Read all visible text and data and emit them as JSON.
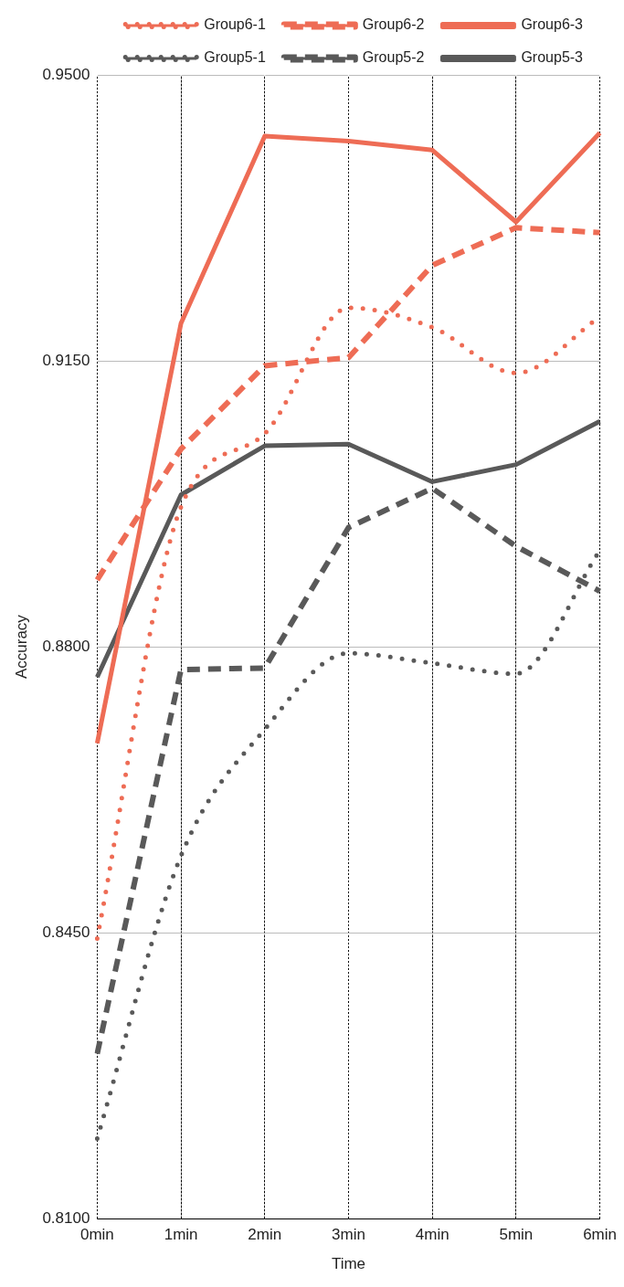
{
  "chart_data": {
    "type": "line",
    "xlabel": "Time",
    "ylabel": "Accuracy",
    "categories": [
      "0min",
      "1min",
      "2min",
      "3min",
      "4min",
      "5min",
      "6min"
    ],
    "series": [
      {
        "name": "Group6-1",
        "color": "#ee6c55",
        "line_style": "dotted",
        "values": [
          0.8443,
          0.8971,
          0.9061,
          0.9215,
          0.9191,
          0.9135,
          0.9204
        ]
      },
      {
        "name": "Group6-2",
        "color": "#ee6c55",
        "line_style": "dashed",
        "values": [
          0.8882,
          0.9042,
          0.9144,
          0.9154,
          0.9267,
          0.9313,
          0.9307
        ]
      },
      {
        "name": "Group6-3",
        "color": "#ee6c55",
        "line_style": "solid",
        "values": [
          0.8682,
          0.9196,
          0.9425,
          0.9419,
          0.9408,
          0.932,
          0.9429
        ]
      },
      {
        "name": "Group5-1",
        "color": "#595959",
        "line_style": "dotted",
        "values": [
          0.8198,
          0.8544,
          0.8699,
          0.8792,
          0.878,
          0.8767,
          0.8918
        ]
      },
      {
        "name": "Group5-2",
        "color": "#595959",
        "line_style": "dashed",
        "values": [
          0.8302,
          0.8772,
          0.8774,
          0.8946,
          0.8994,
          0.8923,
          0.8868
        ]
      },
      {
        "name": "Group5-3",
        "color": "#595959",
        "line_style": "solid",
        "values": [
          0.8763,
          0.8986,
          0.9046,
          0.9048,
          0.9002,
          0.9023,
          0.9076
        ]
      }
    ],
    "ylim": [
      0.81,
      0.95
    ],
    "yticks": [
      {
        "value": 0.81,
        "label": "0.8100"
      },
      {
        "value": 0.845,
        "label": "0.8450"
      },
      {
        "value": 0.88,
        "label": "0.8800"
      },
      {
        "value": 0.915,
        "label": "0.9150"
      },
      {
        "value": 0.95,
        "label": "0.9500"
      }
    ],
    "grid": true,
    "legend": "top right",
    "marker": "none"
  }
}
